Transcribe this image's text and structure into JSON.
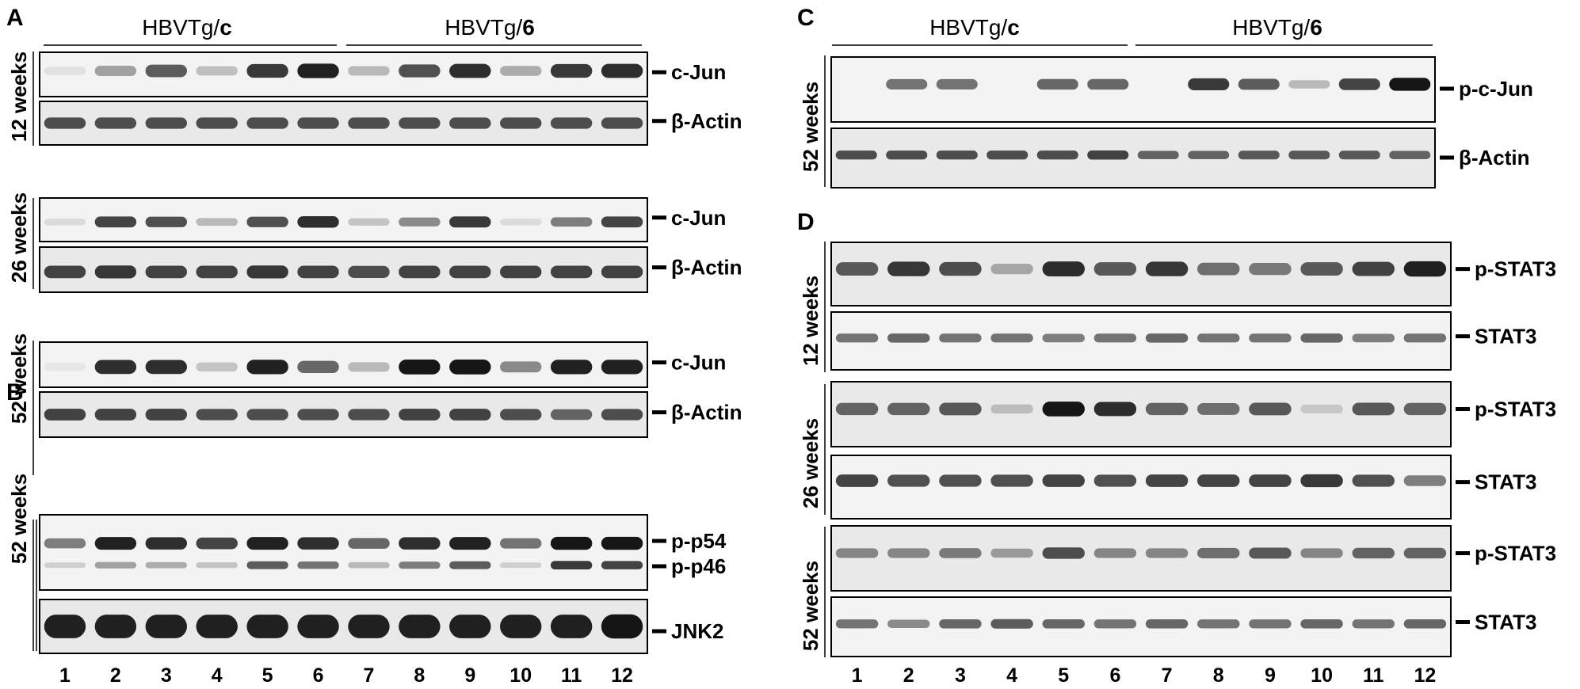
{
  "panels": {
    "A": "A",
    "B": "B",
    "C": "C",
    "D": "D"
  },
  "groups": {
    "control_prefix": "HBVTg/",
    "control_suffix": "c",
    "treated_prefix": "HBVTg/",
    "treated_suffix": "6"
  },
  "timepoints": {
    "w12": "12 weeks",
    "w26": "26 weeks",
    "w52": "52 weeks"
  },
  "lanes": [
    "1",
    "2",
    "3",
    "4",
    "5",
    "6",
    "7",
    "8",
    "9",
    "10",
    "11",
    "12"
  ],
  "blots": {
    "A": [
      {
        "label": "c-Jun",
        "intensity": [
          0.08,
          0.35,
          0.65,
          0.22,
          0.8,
          0.9,
          0.25,
          0.7,
          0.85,
          0.3,
          0.8,
          0.85
        ]
      },
      {
        "label": "β-Actin",
        "intensity": [
          0.7,
          0.7,
          0.7,
          0.7,
          0.7,
          0.7,
          0.7,
          0.7,
          0.7,
          0.7,
          0.7,
          0.7
        ]
      },
      {
        "label": "c-Jun",
        "intensity": [
          0.1,
          0.75,
          0.7,
          0.25,
          0.7,
          0.85,
          0.2,
          0.45,
          0.8,
          0.1,
          0.5,
          0.75
        ]
      },
      {
        "label": "β-Actin",
        "intensity": [
          0.75,
          0.8,
          0.75,
          0.75,
          0.8,
          0.75,
          0.7,
          0.75,
          0.75,
          0.75,
          0.75,
          0.75
        ]
      },
      {
        "label": "c-Jun",
        "intensity": [
          0.05,
          0.85,
          0.85,
          0.2,
          0.9,
          0.6,
          0.25,
          0.95,
          0.95,
          0.45,
          0.9,
          0.9
        ]
      },
      {
        "label": "β-Actin",
        "intensity": [
          0.75,
          0.75,
          0.75,
          0.7,
          0.7,
          0.7,
          0.7,
          0.75,
          0.75,
          0.7,
          0.6,
          0.7
        ]
      }
    ],
    "B": {
      "p54": {
        "label": "p-p54",
        "intensity": [
          0.5,
          0.9,
          0.85,
          0.75,
          0.9,
          0.85,
          0.6,
          0.85,
          0.9,
          0.55,
          0.95,
          0.95
        ]
      },
      "p46": {
        "label": "p-p46",
        "intensity": [
          0.15,
          0.35,
          0.3,
          0.2,
          0.65,
          0.55,
          0.25,
          0.5,
          0.65,
          0.15,
          0.8,
          0.75
        ]
      },
      "jnk2": {
        "label": "JNK2",
        "intensity": [
          0.9,
          0.9,
          0.9,
          0.9,
          0.9,
          0.9,
          0.9,
          0.9,
          0.9,
          0.9,
          0.9,
          0.95
        ]
      }
    },
    "C": [
      {
        "label": "p-c-Jun",
        "intensity": [
          0,
          0.55,
          0.55,
          0,
          0.6,
          0.6,
          0,
          0.8,
          0.65,
          0.25,
          0.75,
          0.95
        ]
      },
      {
        "label": "β-Actin",
        "intensity": [
          0.7,
          0.7,
          0.7,
          0.7,
          0.7,
          0.75,
          0.6,
          0.6,
          0.65,
          0.65,
          0.65,
          0.6
        ]
      }
    ],
    "D": [
      {
        "label": "p-STAT3",
        "intensity": [
          0.65,
          0.8,
          0.7,
          0.3,
          0.85,
          0.65,
          0.8,
          0.55,
          0.5,
          0.65,
          0.75,
          0.9
        ]
      },
      {
        "label": "STAT3",
        "intensity": [
          0.55,
          0.6,
          0.55,
          0.55,
          0.5,
          0.55,
          0.6,
          0.55,
          0.55,
          0.6,
          0.5,
          0.55
        ]
      },
      {
        "label": "p-STAT3",
        "intensity": [
          0.6,
          0.6,
          0.65,
          0.2,
          0.95,
          0.85,
          0.6,
          0.55,
          0.65,
          0.15,
          0.65,
          0.6
        ]
      },
      {
        "label": "STAT3",
        "intensity": [
          0.75,
          0.7,
          0.7,
          0.7,
          0.75,
          0.7,
          0.75,
          0.75,
          0.75,
          0.8,
          0.7,
          0.5
        ]
      },
      {
        "label": "p-STAT3",
        "intensity": [
          0.45,
          0.45,
          0.5,
          0.35,
          0.7,
          0.45,
          0.45,
          0.55,
          0.65,
          0.45,
          0.6,
          0.6
        ]
      },
      {
        "label": "STAT3",
        "intensity": [
          0.55,
          0.45,
          0.6,
          0.65,
          0.6,
          0.55,
          0.6,
          0.55,
          0.55,
          0.6,
          0.55,
          0.6
        ]
      }
    ]
  },
  "colors": {
    "blot_background": "#e9e9e9",
    "blot_background_light": "#f3f3f3",
    "band": "#0a0a0a",
    "frame": "#000000"
  }
}
